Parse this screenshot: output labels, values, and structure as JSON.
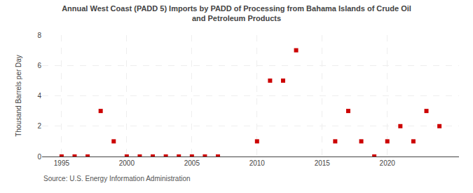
{
  "chart_data": {
    "type": "scatter",
    "title": "Annual West Coast (PADD 5) Imports by PADD of Processing from Bahama Islands of Crude Oil\nand Petroleum Products",
    "ylabel": "Thousand Barrels per Day",
    "annotations": [
      "Source: U.S. Energy Information Administration"
    ],
    "x": [
      1995,
      1996,
      1997,
      1998,
      1999,
      2000,
      2001,
      2002,
      2003,
      2004,
      2005,
      2006,
      2007,
      2010,
      2011,
      2012,
      2013,
      2016,
      2017,
      2018,
      2019,
      2020,
      2021,
      2022,
      2023,
      2024
    ],
    "values": [
      0,
      0,
      0,
      3,
      1,
      0,
      0,
      0,
      0,
      0,
      0,
      0,
      0,
      1,
      5,
      5,
      7,
      1,
      3,
      1,
      0,
      1,
      2,
      1,
      3,
      2
    ],
    "color": "#cc0000",
    "marker": "square",
    "xlim": [
      1993.5,
      2025.5
    ],
    "ylim": [
      0,
      8
    ],
    "xticks": [
      1995,
      2000,
      2005,
      2010,
      2015,
      2020
    ],
    "yticks": [
      0,
      2,
      4,
      6,
      8
    ],
    "grid": true
  }
}
